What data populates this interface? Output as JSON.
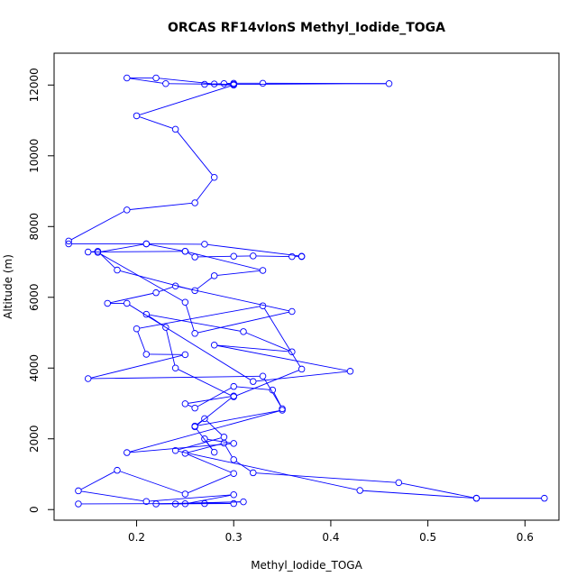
{
  "chart_data": {
    "type": "line",
    "title": "ORCAS RF14vlonS Methyl_Iodide_TOGA",
    "xlabel": "Methyl_Iodide_TOGA",
    "ylabel": "Altitude (m)",
    "xlim": [
      0.115,
      0.635
    ],
    "ylim": [
      -300,
      12900
    ],
    "xticks": [
      0.2,
      0.3,
      0.4,
      0.5,
      0.6
    ],
    "xtick_labels": [
      "0.2",
      "0.3",
      "0.4",
      "0.5",
      "0.6"
    ],
    "yticks": [
      0,
      2000,
      4000,
      6000,
      8000,
      10000,
      12000
    ],
    "ytick_labels": [
      "0",
      "2000",
      "4000",
      "6000",
      "8000",
      "10000",
      "12000"
    ],
    "grid": false,
    "series_color": "#0000ff",
    "markers": "open-circle",
    "series": [
      {
        "x": [
          0.14,
          0.27,
          0.3,
          0.22,
          0.31,
          0.24,
          0.25,
          0.3,
          0.21,
          0.14,
          0.18,
          0.25,
          0.3,
          0.25,
          0.29,
          0.3,
          0.32,
          0.47,
          0.55,
          0.62,
          0.55,
          0.43,
          0.24,
          0.29,
          0.27,
          0.26,
          0.35,
          0.19,
          0.3,
          0.27,
          0.28,
          0.26,
          0.3,
          0.25,
          0.26,
          0.3,
          0.34,
          0.35,
          0.33,
          0.15,
          0.25,
          0.21,
          0.2,
          0.33,
          0.37,
          0.3,
          0.24,
          0.23,
          0.21,
          0.31,
          0.36,
          0.28,
          0.42,
          0.32,
          0.19,
          0.17,
          0.22,
          0.24,
          0.36,
          0.26,
          0.25,
          0.16,
          0.21,
          0.25,
          0.33,
          0.28,
          0.26,
          0.18,
          0.16,
          0.15,
          0.25,
          0.26,
          0.3,
          0.32,
          0.36,
          0.37,
          0.37,
          0.27,
          0.21,
          0.13,
          0.13,
          0.19,
          0.26,
          0.28,
          0.24,
          0.2,
          0.3,
          0.27,
          0.29,
          0.3,
          0.33,
          0.46,
          0.3,
          0.23,
          0.19,
          0.22,
          0.28
        ],
        "y": [
          160,
          170,
          170,
          160,
          220,
          160,
          165,
          420,
          230,
          530,
          1110,
          440,
          1020,
          1590,
          1880,
          1410,
          1040,
          760,
          320,
          320,
          320,
          540,
          1670,
          2050,
          2570,
          2360,
          2810,
          1610,
          1870,
          2000,
          1620,
          2340,
          3210,
          2990,
          2870,
          3480,
          3380,
          2850,
          3770,
          3700,
          4380,
          4390,
          5110,
          5760,
          3970,
          3190,
          4000,
          5150,
          5520,
          5030,
          4460,
          4650,
          3910,
          3620,
          5830,
          5830,
          6130,
          6320,
          5600,
          4980,
          5860,
          7270,
          7510,
          7300,
          6760,
          6610,
          6190,
          6770,
          7300,
          7280,
          7300,
          7140,
          7160,
          7170,
          7150,
          7150,
          7160,
          7500,
          7510,
          7510,
          7590,
          8470,
          8670,
          9390,
          10750,
          11130,
          12000,
          12020,
          12040,
          12050,
          12050,
          12040,
          12020,
          12040,
          12200,
          12200,
          12030
        ]
      }
    ]
  }
}
